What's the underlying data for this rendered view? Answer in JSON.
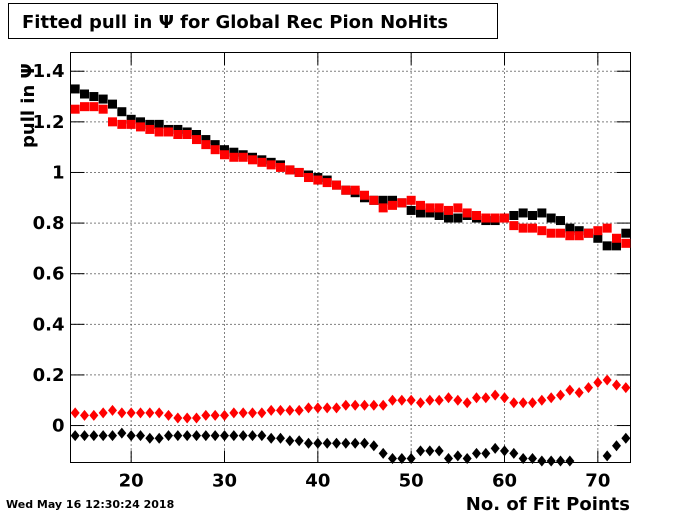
{
  "chart_data": {
    "type": "scatter",
    "title": "Fitted pull in  Ψ  for Global Rec Pion NoHits",
    "x_label": "No. of Fit Points",
    "y_label": "pull in Ψ",
    "timestamp": "Wed May 16 12:30:24 2018",
    "xlim": [
      13.5,
      73.5
    ],
    "ylim": [
      -0.146,
      1.474
    ],
    "xticks": [
      20,
      30,
      40,
      50,
      60,
      70
    ],
    "yticks": [
      0,
      0.2,
      0.4,
      0.6,
      0.8,
      1,
      1.2,
      1.4
    ],
    "grid": true,
    "x": [
      14,
      15,
      16,
      17,
      18,
      19,
      20,
      21,
      22,
      23,
      24,
      25,
      26,
      27,
      28,
      29,
      30,
      31,
      32,
      33,
      34,
      35,
      36,
      37,
      38,
      39,
      40,
      41,
      42,
      43,
      44,
      45,
      46,
      47,
      48,
      49,
      50,
      51,
      52,
      53,
      54,
      55,
      56,
      57,
      58,
      59,
      60,
      61,
      62,
      63,
      64,
      65,
      66,
      67,
      68,
      69,
      70,
      71,
      72,
      73
    ],
    "series": [
      {
        "marker": "square",
        "color": "#000000",
        "values": [
          1.33,
          1.31,
          1.3,
          1.29,
          1.27,
          1.24,
          1.21,
          1.2,
          1.19,
          1.19,
          1.17,
          1.17,
          1.16,
          1.15,
          1.13,
          1.11,
          1.09,
          1.08,
          1.07,
          1.06,
          1.05,
          1.04,
          1.03,
          1.01,
          1.0,
          0.99,
          0.98,
          0.97,
          0.95,
          0.93,
          0.92,
          0.9,
          0.89,
          0.89,
          0.89,
          0.88,
          0.85,
          0.84,
          0.84,
          0.83,
          0.82,
          0.82,
          0.83,
          0.82,
          0.81,
          0.81,
          0.82,
          0.83,
          0.84,
          0.83,
          0.84,
          0.82,
          0.81,
          0.78,
          0.77,
          0.76,
          0.74,
          0.71,
          0.71,
          0.76
        ]
      },
      {
        "marker": "square",
        "color": "#ff0000",
        "values": [
          1.25,
          1.26,
          1.26,
          1.25,
          1.2,
          1.19,
          1.19,
          1.18,
          1.17,
          1.16,
          1.16,
          1.15,
          1.15,
          1.13,
          1.11,
          1.09,
          1.07,
          1.06,
          1.06,
          1.05,
          1.04,
          1.03,
          1.02,
          1.01,
          1.0,
          0.98,
          0.97,
          0.96,
          0.95,
          0.93,
          0.93,
          0.91,
          0.89,
          0.86,
          0.87,
          0.88,
          0.89,
          0.87,
          0.86,
          0.86,
          0.85,
          0.86,
          0.84,
          0.83,
          0.82,
          0.82,
          0.82,
          0.79,
          0.78,
          0.78,
          0.77,
          0.76,
          0.76,
          0.75,
          0.75,
          0.76,
          0.77,
          0.78,
          0.74,
          0.72
        ]
      },
      {
        "marker": "diamond",
        "color": "#ff0000",
        "values": [
          0.05,
          0.04,
          0.04,
          0.05,
          0.06,
          0.05,
          0.05,
          0.05,
          0.05,
          0.05,
          0.04,
          0.03,
          0.03,
          0.03,
          0.04,
          0.04,
          0.04,
          0.05,
          0.05,
          0.05,
          0.05,
          0.06,
          0.06,
          0.06,
          0.06,
          0.07,
          0.07,
          0.07,
          0.07,
          0.08,
          0.08,
          0.08,
          0.08,
          0.08,
          0.1,
          0.1,
          0.1,
          0.09,
          0.1,
          0.1,
          0.11,
          0.1,
          0.09,
          0.11,
          0.11,
          0.12,
          0.11,
          0.09,
          0.09,
          0.09,
          0.1,
          0.11,
          0.12,
          0.14,
          0.13,
          0.15,
          0.17,
          0.18,
          0.16,
          0.15
        ]
      },
      {
        "marker": "diamond",
        "color": "#000000",
        "values": [
          -0.04,
          -0.04,
          -0.04,
          -0.04,
          -0.04,
          -0.03,
          -0.04,
          -0.04,
          -0.05,
          -0.05,
          -0.04,
          -0.04,
          -0.04,
          -0.04,
          -0.04,
          -0.04,
          -0.04,
          -0.04,
          -0.04,
          -0.04,
          -0.04,
          -0.05,
          -0.05,
          -0.06,
          -0.06,
          -0.07,
          -0.07,
          -0.07,
          -0.07,
          -0.07,
          -0.07,
          -0.07,
          -0.08,
          -0.11,
          -0.13,
          -0.13,
          -0.13,
          -0.1,
          -0.1,
          -0.1,
          -0.13,
          -0.12,
          -0.13,
          -0.11,
          -0.11,
          -0.09,
          -0.1,
          -0.11,
          -0.13,
          -0.13,
          -0.14,
          -0.14,
          -0.14,
          -0.14,
          null,
          null,
          null,
          -0.12,
          -0.08,
          -0.05
        ]
      }
    ]
  }
}
